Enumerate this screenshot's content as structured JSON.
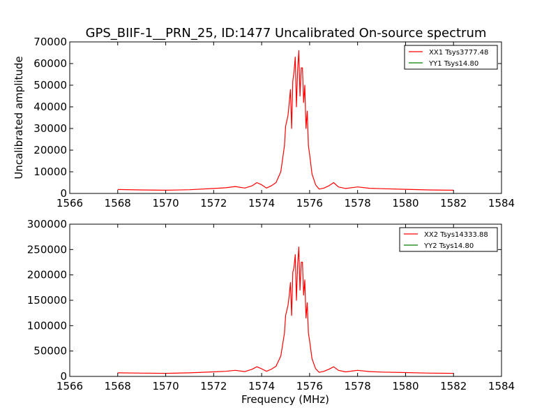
{
  "figure": {
    "title": "GPS_BIIF-1__PRN_25, ID:1477 Uncalibrated On-source spectrum",
    "xlabel": "Frequency (MHz)"
  },
  "chart_data": [
    {
      "type": "line",
      "title": "GPS_BIIF-1__PRN_25, ID:1477 Uncalibrated On-source spectrum",
      "xlabel": "",
      "ylabel": "Uncalibrated amplitude",
      "xlim": [
        1566,
        1584
      ],
      "ylim": [
        0,
        70000
      ],
      "xticks": [
        1566,
        1568,
        1570,
        1572,
        1574,
        1576,
        1578,
        1580,
        1582,
        1584
      ],
      "yticks": [
        0,
        10000,
        20000,
        30000,
        40000,
        50000,
        60000,
        70000
      ],
      "grid": false,
      "legend_position": "top-right",
      "series": [
        {
          "name": "XX1 Tsys3777.48",
          "color": "#ff0000",
          "x": [
            1568.0,
            1569.0,
            1570.0,
            1571.0,
            1572.0,
            1572.5,
            1572.9,
            1573.3,
            1573.6,
            1573.8,
            1574.0,
            1574.2,
            1574.4,
            1574.6,
            1574.8,
            1574.95,
            1575.0,
            1575.1,
            1575.15,
            1575.2,
            1575.25,
            1575.3,
            1575.35,
            1575.4,
            1575.45,
            1575.5,
            1575.55,
            1575.6,
            1575.65,
            1575.7,
            1575.75,
            1575.8,
            1575.85,
            1575.9,
            1575.95,
            1576.0,
            1576.1,
            1576.25,
            1576.4,
            1576.6,
            1576.8,
            1577.0,
            1577.2,
            1577.5,
            1578.0,
            1578.5,
            1579.0,
            1580.0,
            1581.0,
            1582.0
          ],
          "y": [
            1800,
            1600,
            1500,
            1700,
            2300,
            2600,
            3200,
            2500,
            3500,
            5000,
            4000,
            2500,
            3500,
            5000,
            10000,
            22000,
            31000,
            36000,
            42000,
            48000,
            30000,
            52000,
            56000,
            63000,
            40000,
            57000,
            66000,
            45000,
            58000,
            58000,
            42000,
            50000,
            30000,
            38000,
            22000,
            18000,
            9000,
            4000,
            2000,
            2500,
            3500,
            5000,
            3000,
            2300,
            3000,
            2400,
            2200,
            1900,
            1600,
            1500
          ]
        },
        {
          "name": "YY1 Tsys14.80",
          "color": "#008000",
          "x": [],
          "y": []
        }
      ]
    },
    {
      "type": "line",
      "title": "",
      "xlabel": "Frequency (MHz)",
      "ylabel": "",
      "xlim": [
        1566,
        1584
      ],
      "ylim": [
        0,
        300000
      ],
      "xticks": [
        1566,
        1568,
        1570,
        1572,
        1574,
        1576,
        1578,
        1580,
        1582,
        1584
      ],
      "yticks": [
        0,
        50000,
        100000,
        150000,
        200000,
        250000,
        300000
      ],
      "grid": false,
      "legend_position": "top-right",
      "series": [
        {
          "name": "XX2 Tsys14333.88",
          "color": "#ff0000",
          "x": [
            1568.0,
            1569.0,
            1570.0,
            1571.0,
            1572.0,
            1572.5,
            1572.9,
            1573.3,
            1573.6,
            1573.8,
            1574.0,
            1574.2,
            1574.4,
            1574.6,
            1574.8,
            1574.95,
            1575.0,
            1575.1,
            1575.15,
            1575.2,
            1575.25,
            1575.3,
            1575.35,
            1575.4,
            1575.45,
            1575.5,
            1575.55,
            1575.6,
            1575.65,
            1575.7,
            1575.75,
            1575.8,
            1575.85,
            1575.9,
            1575.95,
            1576.0,
            1576.1,
            1576.25,
            1576.4,
            1576.6,
            1576.8,
            1577.0,
            1577.2,
            1577.5,
            1578.0,
            1578.5,
            1579.0,
            1580.0,
            1581.0,
            1582.0
          ],
          "y": [
            7000,
            6500,
            6000,
            7000,
            9000,
            10000,
            12000,
            9500,
            14000,
            19000,
            15000,
            10000,
            14000,
            20000,
            40000,
            85000,
            120000,
            140000,
            160000,
            185000,
            120000,
            205000,
            215000,
            240000,
            150000,
            220000,
            255000,
            170000,
            225000,
            225000,
            160000,
            190000,
            115000,
            145000,
            85000,
            70000,
            35000,
            15000,
            8000,
            10000,
            14000,
            19000,
            12000,
            9000,
            12000,
            9500,
            8500,
            7500,
            6500,
            6000
          ]
        },
        {
          "name": "YY2 Tsys14.80",
          "color": "#008000",
          "x": [],
          "y": []
        }
      ]
    }
  ]
}
